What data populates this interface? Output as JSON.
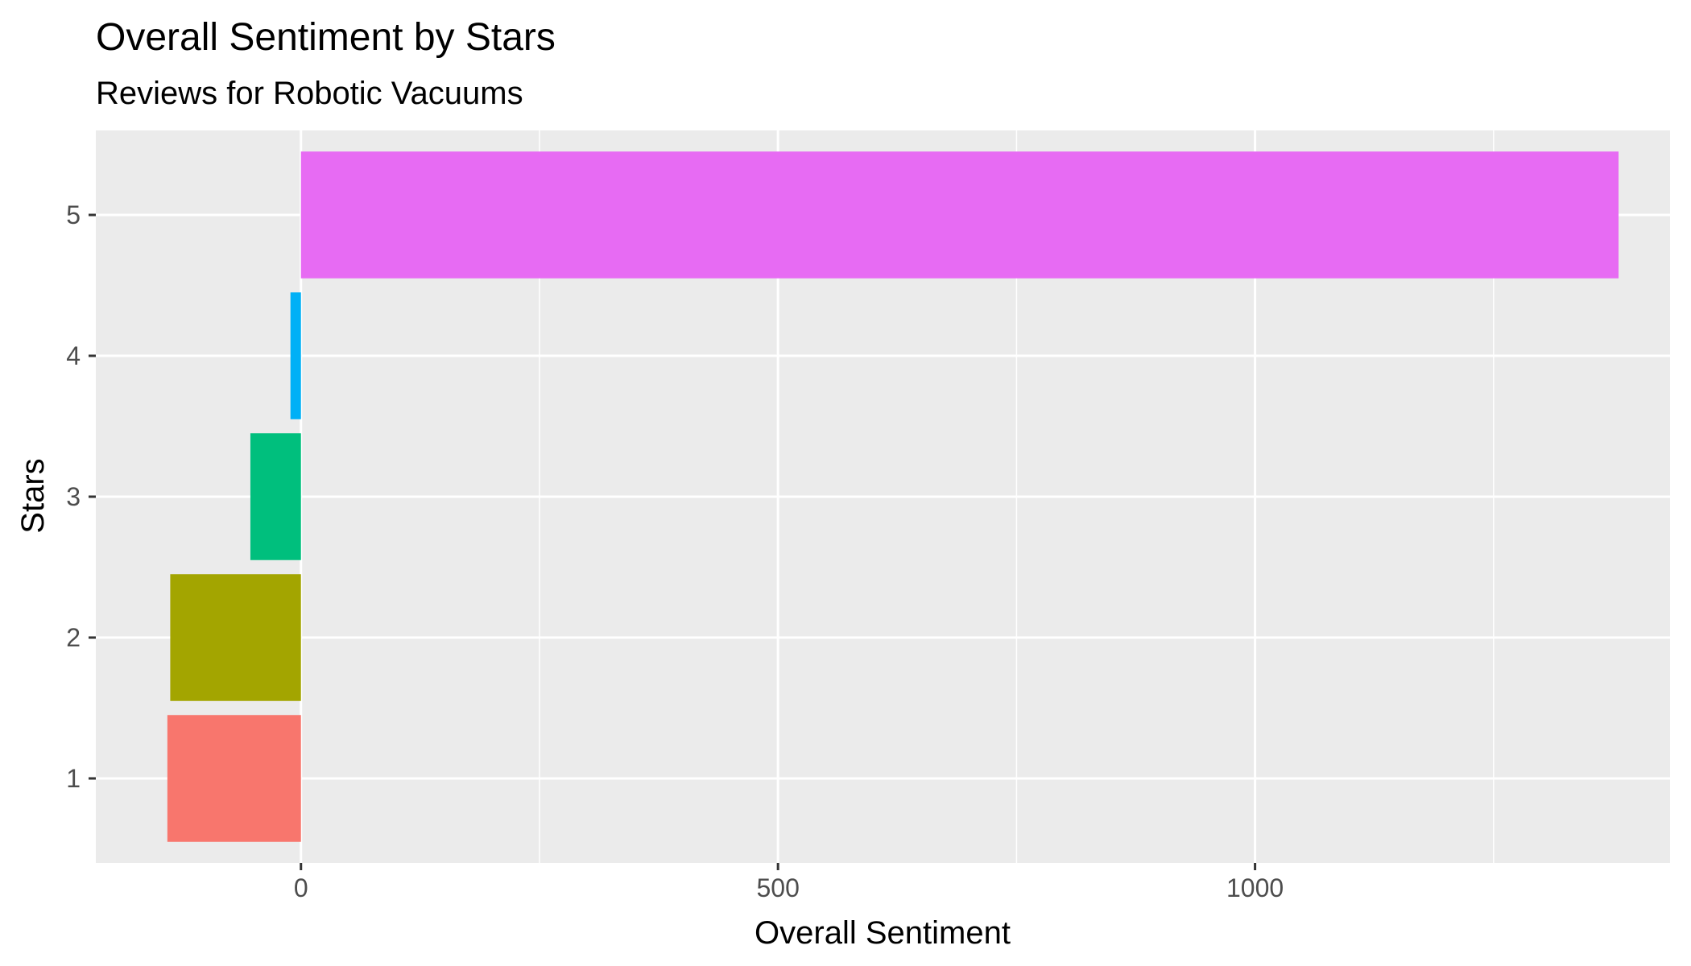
{
  "chart_data": {
    "type": "bar",
    "orientation": "horizontal",
    "title": "Overall Sentiment by Stars",
    "subtitle": "Reviews for Robotic Vacuums",
    "xlabel": "Overall Sentiment",
    "ylabel": "Stars",
    "categories": [
      "1",
      "2",
      "3",
      "4",
      "5"
    ],
    "values": [
      -140,
      -137,
      -53,
      -11,
      1381
    ],
    "colors": [
      "#F8766D",
      "#A3A500",
      "#00BF7D",
      "#00B0F6",
      "#E76BF3"
    ],
    "xlim": [
      -215,
      1435
    ],
    "x_ticks": [
      0,
      500,
      1000
    ],
    "x_minor_gridlines": [
      250,
      750,
      1250
    ],
    "grid": true,
    "panel_background": "#EBEBEB",
    "grid_color": "#FFFFFF",
    "legend": "none"
  }
}
